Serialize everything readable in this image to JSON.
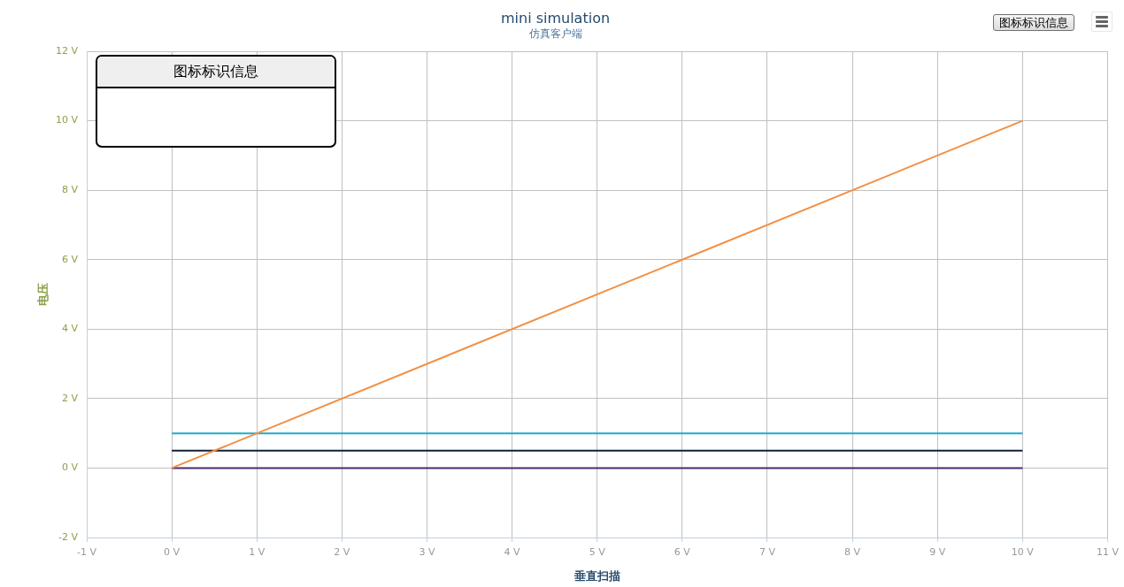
{
  "chart_data": {
    "type": "line",
    "title": "mini simulation",
    "subtitle": "仿真客户端",
    "xlabel": "垂直扫描",
    "ylabel": "电压",
    "legend_title": "图标标识信息",
    "annotations": [
      "图标标识信息"
    ],
    "x": [
      0,
      10
    ],
    "series": [
      {
        "color": "#f28f43",
        "values": [
          0,
          10
        ]
      },
      {
        "color": "#1aadce",
        "values": [
          1,
          1
        ]
      },
      {
        "color": "#0d233a",
        "values": [
          0.5,
          0.5
        ]
      },
      {
        "color": "#492970",
        "values": [
          0,
          0
        ]
      }
    ],
    "xlim": [
      -1,
      11
    ],
    "xticks": [
      {
        "value": -1,
        "label": "-1 V"
      },
      {
        "value": 0,
        "label": "0 V"
      },
      {
        "value": 1,
        "label": "1 V"
      },
      {
        "value": 2,
        "label": "2 V"
      },
      {
        "value": 3,
        "label": "3 V"
      },
      {
        "value": 4,
        "label": "4 V"
      },
      {
        "value": 5,
        "label": "5 V"
      },
      {
        "value": 6,
        "label": "6 V"
      },
      {
        "value": 7,
        "label": "7 V"
      },
      {
        "value": 8,
        "label": "8 V"
      },
      {
        "value": 9,
        "label": "9 V"
      },
      {
        "value": 10,
        "label": "10 V"
      },
      {
        "value": 11,
        "label": "11 V"
      }
    ],
    "ylim": [
      -2,
      12
    ],
    "yticks": [
      {
        "value": -2,
        "label": "-2 V"
      },
      {
        "value": 0,
        "label": "0 V"
      },
      {
        "value": 2,
        "label": "2 V"
      },
      {
        "value": 4,
        "label": "4 V"
      },
      {
        "value": 6,
        "label": "6 V"
      },
      {
        "value": 8,
        "label": "8 V"
      },
      {
        "value": 10,
        "label": "10 V"
      },
      {
        "value": 12,
        "label": "12 V"
      }
    ],
    "grid": true,
    "marker": "none",
    "line_style": "solid"
  }
}
